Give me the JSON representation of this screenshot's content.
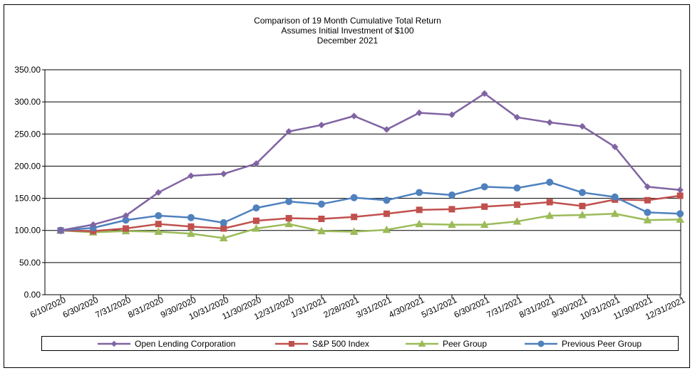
{
  "chart_data": {
    "type": "line",
    "title": "Comparison of 19 Month Cumulative Total Return",
    "subtitle_lines": [
      "Assumes Initial Investment of $100",
      "December 2021"
    ],
    "xlabel": "",
    "ylabel": "",
    "ylim": [
      0,
      350
    ],
    "yticks": [
      "0.00",
      "50.00",
      "100.00",
      "150.00",
      "200.00",
      "250.00",
      "300.00",
      "350.00"
    ],
    "grid": true,
    "legend_position": "bottom",
    "categories": [
      "6/10/2020",
      "6/30/2020",
      "7/31/2020",
      "8/31/2020",
      "9/30/2020",
      "10/31/2020",
      "11/30/2020",
      "12/31/2020",
      "1/31/2021",
      "2/28/2021",
      "3/31/2021",
      "4/30/2021",
      "5/31/2021",
      "6/30/2021",
      "7/31/2021",
      "8/31/2021",
      "9/30/2021",
      "10/31/2021",
      "11/30/2021",
      "12/31/2021"
    ],
    "series": [
      {
        "name": "Open Lending Corporation",
        "color": "#8064a2",
        "marker": "diamond",
        "values": [
          100,
          109,
          123,
          159,
          185,
          188,
          204,
          254,
          264,
          278,
          257,
          283,
          280,
          313,
          276,
          268,
          262,
          230,
          168,
          163
        ]
      },
      {
        "name": "S&P 500 Index",
        "color": "#c0504d",
        "marker": "square",
        "values": [
          100,
          99,
          103,
          110,
          106,
          103,
          115,
          119,
          118,
          121,
          126,
          132,
          133,
          137,
          140,
          144,
          138,
          148,
          147,
          154
        ]
      },
      {
        "name": "Peer Group",
        "color": "#9bbb59",
        "marker": "triangle",
        "values": [
          100,
          97,
          99,
          98,
          95,
          88,
          103,
          110,
          99,
          98,
          101,
          110,
          109,
          109,
          114,
          123,
          124,
          126,
          116,
          117
        ]
      },
      {
        "name": "Previous Peer Group",
        "color": "#4f81bd",
        "marker": "circle",
        "values": [
          100,
          104,
          116,
          123,
          120,
          112,
          135,
          145,
          141,
          151,
          147,
          159,
          155,
          168,
          166,
          175,
          159,
          152,
          128,
          126
        ]
      }
    ]
  }
}
